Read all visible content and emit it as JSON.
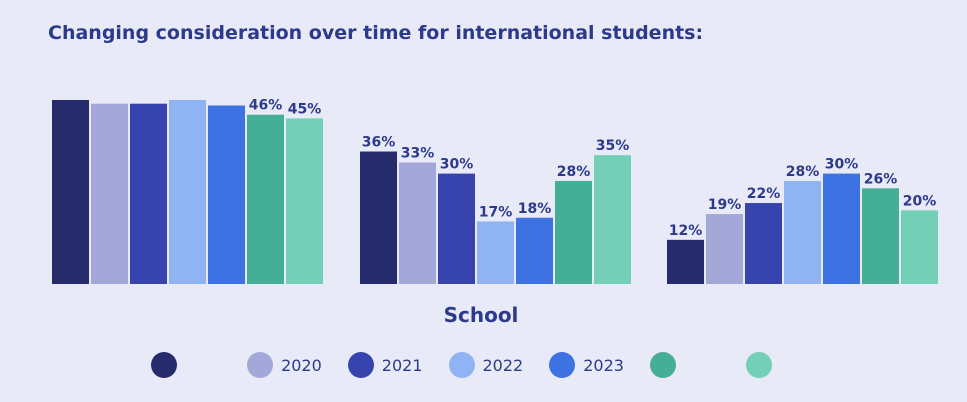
{
  "chart_data": {
    "type": "bar",
    "title": "Changing consideration over time for international students:",
    "xlabel": "School",
    "ylabel": "",
    "ylim": [
      0,
      50
    ],
    "grid": false,
    "legend_position": "bottom",
    "groups": [
      "",
      "School",
      ""
    ],
    "series": [
      {
        "name": "",
        "color": "#262b6b",
        "values": [
          50,
          36,
          12
        ],
        "labels": [
          "",
          "36%",
          "12%"
        ]
      },
      {
        "name": "2020",
        "color": "#a3a8d8",
        "values": [
          49,
          33,
          19
        ],
        "labels": [
          "",
          "33%",
          "19%"
        ]
      },
      {
        "name": "2021",
        "color": "#3744ad",
        "values": [
          49,
          30,
          22
        ],
        "labels": [
          "",
          "30%",
          "22%"
        ]
      },
      {
        "name": "2022",
        "color": "#8fb3f3",
        "values": [
          50,
          17,
          28
        ],
        "labels": [
          "",
          "17%",
          "28%"
        ]
      },
      {
        "name": "2023",
        "color": "#3d72e3",
        "values": [
          48.5,
          18,
          30
        ],
        "labels": [
          "",
          "18%",
          "30%"
        ]
      },
      {
        "name": "",
        "color": "#44ae97",
        "values": [
          46,
          28,
          26
        ],
        "labels": [
          "46%",
          "28%",
          "26%"
        ]
      },
      {
        "name": "",
        "color": "#73cfb6",
        "values": [
          45,
          35,
          20
        ],
        "labels": [
          "45%",
          "35%",
          "20%"
        ]
      }
    ]
  }
}
